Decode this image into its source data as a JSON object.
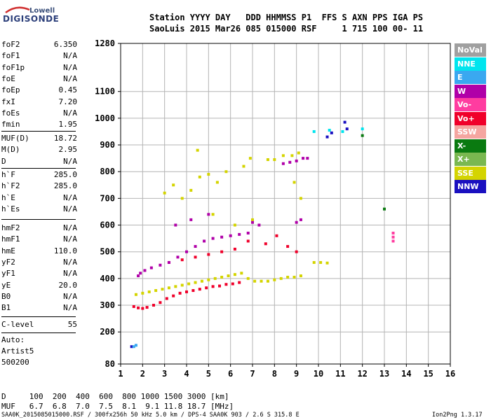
{
  "logo": {
    "line1": "Lowell",
    "line2": "DIGISONDE"
  },
  "header": {
    "line1": "Station YYYY DAY   DDD HHMMSS P1  FFS S AXN PPS IGA PS",
    "line2": "SaoLuis 2015 Mar26 085 015000 RSF     1 715 100 00- 11"
  },
  "params": [
    {
      "label": "foF2",
      "value": "6.350"
    },
    {
      "label": "foF1",
      "value": "N/A"
    },
    {
      "label": "foF1p",
      "value": "N/A"
    },
    {
      "label": "foE",
      "value": "N/A"
    },
    {
      "label": "foEp",
      "value": "0.45"
    },
    {
      "label": "fxI",
      "value": "7.20"
    },
    {
      "label": "foEs",
      "value": "N/A"
    },
    {
      "label": "fmin",
      "value": "1.95"
    },
    {
      "label": "MUF(D)",
      "value": "18.72"
    },
    {
      "label": "M(D)",
      "value": "2.95"
    },
    {
      "label": "D",
      "value": "N/A"
    },
    {
      "label": "h`F",
      "value": "285.0"
    },
    {
      "label": "h`F2",
      "value": "285.0"
    },
    {
      "label": "h`E",
      "value": "N/A"
    },
    {
      "label": "h`Es",
      "value": "N/A"
    },
    {
      "label": "hmF2",
      "value": "N/A"
    },
    {
      "label": "hmF1",
      "value": "N/A"
    },
    {
      "label": "hmE",
      "value": "110.0"
    },
    {
      "label": "yF2",
      "value": "N/A"
    },
    {
      "label": "yF1",
      "value": "N/A"
    },
    {
      "label": "yE",
      "value": "20.0"
    },
    {
      "label": "B0",
      "value": "N/A"
    },
    {
      "label": "B1",
      "value": "N/A"
    },
    {
      "label": "C-level",
      "value": "55"
    }
  ],
  "auto": {
    "line1": "Auto:",
    "line2": "Artist5",
    "line3": "500200"
  },
  "footer": {
    "d_line": "D     100  200  400  600  800 1000 1500 3000 [km]",
    "muf_line": "MUF   6.7  6.8  7.0  7.5  8.1  9.1 11.8 18.7 [MHz]",
    "file_line": "SAA0K_2015085015000.RSF / 300fx256h 50 kHz 5.0 km / DPS-4 SAA0K 903 / 2.6 S 315.8 E",
    "version": "Ion2Png 1.3.17"
  },
  "legend": [
    {
      "label": "NoVal",
      "color": "#a0a0a0"
    },
    {
      "label": "NNE",
      "color": "#00e5ee"
    },
    {
      "label": "E",
      "color": "#3aa8f0"
    },
    {
      "label": "W",
      "color": "#b000a8"
    },
    {
      "label": "Vo-",
      "color": "#ff3ca0"
    },
    {
      "label": "Vo+",
      "color": "#f0002a"
    },
    {
      "label": "SSW",
      "color": "#f5a5a0"
    },
    {
      "label": "X-",
      "color": "#0a7a10"
    },
    {
      "label": "X+",
      "color": "#7ab850"
    },
    {
      "label": "SSE",
      "color": "#d4d400"
    },
    {
      "label": "NNW",
      "color": "#1a10c0"
    }
  ],
  "chart_data": {
    "type": "scatter",
    "xlabel": "",
    "ylabel": "",
    "xlim": [
      1,
      16
    ],
    "ylim": [
      80,
      1280
    ],
    "x_ticks": [
      1,
      2,
      3,
      4,
      5,
      6,
      7,
      8,
      9,
      10,
      11,
      12,
      13,
      14,
      15,
      16
    ],
    "y_ticks": [
      80,
      200,
      300,
      400,
      500,
      600,
      700,
      800,
      900,
      1000,
      1100,
      1280
    ],
    "grid": true,
    "legend_position": "right",
    "series": [
      {
        "name": "SSE",
        "color": "#d4d400",
        "points": [
          [
            1.7,
            340
          ],
          [
            2.0,
            345
          ],
          [
            2.3,
            350
          ],
          [
            2.6,
            355
          ],
          [
            2.9,
            360
          ],
          [
            3.2,
            365
          ],
          [
            3.5,
            370
          ],
          [
            3.8,
            375
          ],
          [
            4.1,
            380
          ],
          [
            4.4,
            385
          ],
          [
            4.7,
            390
          ],
          [
            5.0,
            395
          ],
          [
            5.3,
            400
          ],
          [
            5.6,
            405
          ],
          [
            5.9,
            410
          ],
          [
            6.2,
            415
          ],
          [
            6.5,
            420
          ],
          [
            6.8,
            400
          ],
          [
            7.1,
            390
          ],
          [
            7.4,
            390
          ],
          [
            7.7,
            390
          ],
          [
            8.0,
            395
          ],
          [
            8.3,
            400
          ],
          [
            8.6,
            405
          ],
          [
            8.9,
            405
          ],
          [
            9.2,
            410
          ],
          [
            9.8,
            460
          ],
          [
            10.1,
            460
          ],
          [
            10.4,
            458
          ],
          [
            3.0,
            720
          ],
          [
            3.4,
            750
          ],
          [
            3.8,
            700
          ],
          [
            4.2,
            730
          ],
          [
            4.6,
            780
          ],
          [
            5.0,
            790
          ],
          [
            5.4,
            760
          ],
          [
            5.8,
            800
          ],
          [
            6.6,
            820
          ],
          [
            6.9,
            850
          ],
          [
            7.7,
            845
          ],
          [
            8.0,
            845
          ],
          [
            8.4,
            860
          ],
          [
            8.8,
            860
          ],
          [
            9.1,
            870
          ],
          [
            8.9,
            760
          ],
          [
            9.2,
            700
          ],
          [
            4.5,
            880
          ],
          [
            5.2,
            640
          ],
          [
            6.2,
            600
          ],
          [
            7.0,
            620
          ]
        ]
      },
      {
        "name": "Vo+",
        "color": "#f0002a",
        "points": [
          [
            1.6,
            295
          ],
          [
            1.8,
            290
          ],
          [
            2.0,
            288
          ],
          [
            2.2,
            292
          ],
          [
            2.5,
            300
          ],
          [
            2.8,
            310
          ],
          [
            3.1,
            325
          ],
          [
            3.4,
            335
          ],
          [
            3.7,
            345
          ],
          [
            4.0,
            350
          ],
          [
            4.3,
            355
          ],
          [
            4.6,
            360
          ],
          [
            4.9,
            365
          ],
          [
            5.2,
            370
          ],
          [
            5.5,
            372
          ],
          [
            5.8,
            378
          ],
          [
            6.1,
            380
          ],
          [
            6.4,
            385
          ],
          [
            3.2,
            460
          ],
          [
            3.8,
            470
          ],
          [
            4.4,
            480
          ],
          [
            5.0,
            490
          ],
          [
            5.6,
            500
          ],
          [
            6.2,
            510
          ],
          [
            6.8,
            540
          ],
          [
            7.6,
            530
          ],
          [
            8.1,
            560
          ],
          [
            8.6,
            520
          ],
          [
            9.0,
            500
          ]
        ]
      },
      {
        "name": "W",
        "color": "#b000a8",
        "points": [
          [
            1.8,
            410
          ],
          [
            1.9,
            420
          ],
          [
            2.1,
            430
          ],
          [
            2.4,
            440
          ],
          [
            2.8,
            450
          ],
          [
            3.2,
            460
          ],
          [
            3.6,
            480
          ],
          [
            4.0,
            500
          ],
          [
            4.4,
            520
          ],
          [
            4.8,
            540
          ],
          [
            5.2,
            550
          ],
          [
            5.6,
            555
          ],
          [
            6.0,
            560
          ],
          [
            6.4,
            565
          ],
          [
            6.8,
            570
          ],
          [
            8.4,
            830
          ],
          [
            8.7,
            835
          ],
          [
            9.0,
            840
          ],
          [
            9.3,
            850
          ],
          [
            9.5,
            850
          ],
          [
            9.0,
            610
          ],
          [
            9.2,
            620
          ],
          [
            7.0,
            610
          ],
          [
            7.3,
            600
          ],
          [
            3.5,
            600
          ],
          [
            4.2,
            620
          ],
          [
            5.0,
            640
          ]
        ]
      },
      {
        "name": "NNE",
        "color": "#00e5ee",
        "points": [
          [
            9.8,
            950
          ],
          [
            10.5,
            955
          ],
          [
            11.1,
            950
          ],
          [
            12.0,
            960
          ]
        ]
      },
      {
        "name": "NNW",
        "color": "#1a10c0",
        "points": [
          [
            1.5,
            145
          ],
          [
            10.4,
            930
          ],
          [
            10.6,
            945
          ],
          [
            11.3,
            960
          ],
          [
            11.2,
            985
          ]
        ]
      },
      {
        "name": "X-",
        "color": "#0a7a10",
        "points": [
          [
            12.0,
            935
          ],
          [
            13.0,
            660
          ]
        ]
      },
      {
        "name": "Vo-",
        "color": "#ff3ca0",
        "points": [
          [
            13.4,
            570
          ],
          [
            13.4,
            555
          ],
          [
            13.4,
            540
          ]
        ]
      },
      {
        "name": "E",
        "color": "#3aa8f0",
        "points": [
          [
            1.6,
            145
          ],
          [
            1.7,
            150
          ]
        ]
      }
    ]
  }
}
